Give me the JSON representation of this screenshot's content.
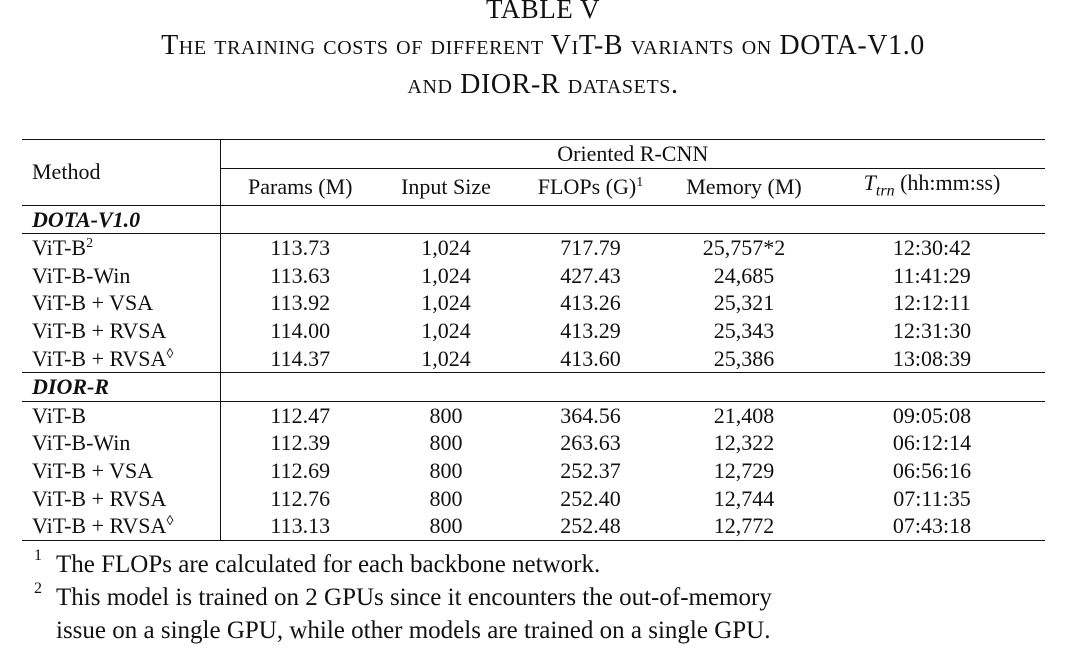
{
  "caption": {
    "table_label": "TABLE V",
    "title_line1": "The training costs of different ViT-B variants on DOTA-V1.0",
    "title_line2": "and DIOR-R datasets."
  },
  "table": {
    "method_header": "Method",
    "group_header": "Oriented R-CNN",
    "columns": {
      "params": "Params (M)",
      "input_size": "Input Size",
      "flops": "FLOPs (G)",
      "flops_mark": "1",
      "memory": "Memory (M)",
      "ttrn_symbol": "T",
      "ttrn_sub": "trn",
      "ttrn_unit": "(hh:mm:ss)"
    },
    "sections": [
      {
        "name": "DOTA-V1.0",
        "rows": [
          {
            "method": "ViT-B",
            "mark": "2",
            "params": "113.73",
            "input_size": "1,024",
            "flops": "717.79",
            "memory": "25,757*2",
            "ttrn": "12:30:42"
          },
          {
            "method": "ViT-B-Win",
            "mark": "",
            "params": "113.63",
            "input_size": "1,024",
            "flops": "427.43",
            "memory": "24,685",
            "ttrn": "11:41:29"
          },
          {
            "method": "ViT-B + VSA",
            "mark": "",
            "params": "113.92",
            "input_size": "1,024",
            "flops": "413.26",
            "memory": "25,321",
            "ttrn": "12:12:11"
          },
          {
            "method": "ViT-B + RVSA",
            "mark": "",
            "params": "114.00",
            "input_size": "1,024",
            "flops": "413.29",
            "memory": "25,343",
            "ttrn": "12:31:30"
          },
          {
            "method": "ViT-B + RVSA",
            "mark": "◊",
            "params": "114.37",
            "input_size": "1,024",
            "flops": "413.60",
            "memory": "25,386",
            "ttrn": "13:08:39"
          }
        ]
      },
      {
        "name": "DIOR-R",
        "rows": [
          {
            "method": "ViT-B",
            "mark": "",
            "params": "112.47",
            "input_size": "800",
            "flops": "364.56",
            "memory": "21,408",
            "ttrn": "09:05:08"
          },
          {
            "method": "ViT-B-Win",
            "mark": "",
            "params": "112.39",
            "input_size": "800",
            "flops": "263.63",
            "memory": "12,322",
            "ttrn": "06:12:14"
          },
          {
            "method": "ViT-B + VSA",
            "mark": "",
            "params": "112.69",
            "input_size": "800",
            "flops": "252.37",
            "memory": "12,729",
            "ttrn": "06:56:16"
          },
          {
            "method": "ViT-B + RVSA",
            "mark": "",
            "params": "112.76",
            "input_size": "800",
            "flops": "252.40",
            "memory": "12,744",
            "ttrn": "07:11:35"
          },
          {
            "method": "ViT-B + RVSA",
            "mark": "◊",
            "params": "113.13",
            "input_size": "800",
            "flops": "252.48",
            "memory": "12,772",
            "ttrn": "07:43:18"
          }
        ]
      }
    ]
  },
  "footnotes": [
    {
      "mark": "1",
      "text": "The FLOPs are calculated for each backbone network."
    },
    {
      "mark": "2",
      "text": "This model is trained on 2 GPUs since it encounters the out-of-memory",
      "text_cont": "issue on a single GPU, while other models are trained on a single GPU."
    }
  ]
}
